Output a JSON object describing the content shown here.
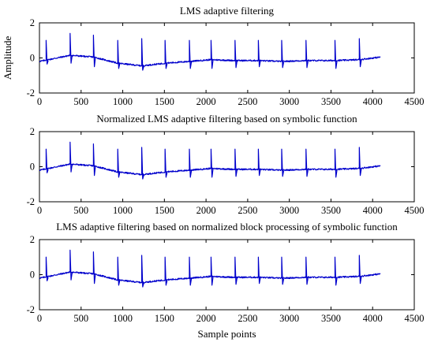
{
  "chart_data": [
    {
      "type": "line",
      "title": "LMS adaptive filtering",
      "xlabel": "",
      "ylabel": "Amplitude",
      "xlim": [
        0,
        4500
      ],
      "ylim": [
        -2,
        2
      ],
      "xticks": [
        0,
        500,
        1000,
        1500,
        2000,
        2500,
        3000,
        3500,
        4000,
        4500
      ],
      "yticks": [
        -2,
        0,
        2
      ],
      "grid": false,
      "series_color": "#0000cc",
      "signal_samples": 4096,
      "spike_positions": [
        80,
        370,
        650,
        940,
        1230,
        1510,
        1800,
        2060,
        2350,
        2630,
        2910,
        3200,
        3550,
        3840
      ],
      "spike_peaks": [
        1.0,
        1.4,
        1.3,
        1.0,
        1.1,
        1.0,
        1.0,
        1.0,
        1.0,
        1.0,
        1.0,
        1.0,
        1.0,
        1.1
      ],
      "spike_troughs": [
        -0.35,
        -0.3,
        -0.5,
        -0.6,
        -0.7,
        -0.6,
        -0.6,
        -0.6,
        -0.55,
        -0.5,
        -0.55,
        -0.55,
        -0.6,
        -0.5
      ],
      "baseline": [
        [
          0,
          -0.2
        ],
        [
          370,
          0.15
        ],
        [
          650,
          0.05
        ],
        [
          940,
          -0.3
        ],
        [
          1230,
          -0.45
        ],
        [
          1510,
          -0.3
        ],
        [
          1800,
          -0.2
        ],
        [
          2060,
          -0.1
        ],
        [
          2350,
          -0.15
        ],
        [
          2630,
          -0.15
        ],
        [
          2910,
          -0.2
        ],
        [
          3200,
          -0.15
        ],
        [
          3550,
          -0.15
        ],
        [
          3840,
          -0.1
        ],
        [
          4096,
          0.05
        ]
      ]
    },
    {
      "type": "line",
      "title": "Normalized LMS adaptive filtering based on symbolic function",
      "xlabel": "",
      "ylabel": "",
      "xlim": [
        0,
        4500
      ],
      "ylim": [
        -2,
        2
      ],
      "xticks": [
        0,
        500,
        1000,
        1500,
        2000,
        2500,
        3000,
        3500,
        4000,
        4500
      ],
      "yticks": [
        -2,
        0,
        2
      ],
      "grid": false,
      "series_color": "#0000cc",
      "signal_samples": 4096,
      "spike_positions": [
        80,
        370,
        650,
        940,
        1230,
        1510,
        1800,
        2060,
        2350,
        2630,
        2910,
        3200,
        3550,
        3840
      ],
      "spike_peaks": [
        1.0,
        1.4,
        1.3,
        1.0,
        1.1,
        1.0,
        1.0,
        1.0,
        1.0,
        1.0,
        1.0,
        1.0,
        1.0,
        1.1
      ],
      "spike_troughs": [
        -0.35,
        -0.3,
        -0.5,
        -0.6,
        -0.7,
        -0.6,
        -0.6,
        -0.6,
        -0.55,
        -0.5,
        -0.55,
        -0.55,
        -0.6,
        -0.5
      ],
      "baseline": [
        [
          0,
          -0.2
        ],
        [
          370,
          0.15
        ],
        [
          650,
          0.05
        ],
        [
          940,
          -0.3
        ],
        [
          1230,
          -0.45
        ],
        [
          1510,
          -0.3
        ],
        [
          1800,
          -0.2
        ],
        [
          2060,
          -0.1
        ],
        [
          2350,
          -0.15
        ],
        [
          2630,
          -0.15
        ],
        [
          2910,
          -0.2
        ],
        [
          3200,
          -0.15
        ],
        [
          3550,
          -0.15
        ],
        [
          3840,
          -0.1
        ],
        [
          4096,
          0.05
        ]
      ]
    },
    {
      "type": "line",
      "title": "LMS adaptive filtering based on normalized block processing of symbolic function",
      "xlabel": "Sample points",
      "ylabel": "",
      "xlim": [
        0,
        4500
      ],
      "ylim": [
        -2,
        2
      ],
      "xticks": [
        0,
        500,
        1000,
        1500,
        2000,
        2500,
        3000,
        3500,
        4000,
        4500
      ],
      "yticks": [
        -2,
        0,
        2
      ],
      "grid": false,
      "series_color": "#0000cc",
      "signal_samples": 4096,
      "spike_positions": [
        80,
        370,
        650,
        940,
        1230,
        1510,
        1800,
        2060,
        2350,
        2630,
        2910,
        3200,
        3550,
        3840
      ],
      "spike_peaks": [
        1.0,
        1.4,
        1.3,
        1.0,
        1.1,
        1.0,
        1.0,
        1.0,
        1.0,
        1.0,
        1.0,
        1.0,
        1.0,
        1.1
      ],
      "spike_troughs": [
        -0.35,
        -0.3,
        -0.5,
        -0.6,
        -0.7,
        -0.6,
        -0.6,
        -0.6,
        -0.55,
        -0.5,
        -0.55,
        -0.55,
        -0.6,
        -0.5
      ],
      "baseline": [
        [
          0,
          -0.2
        ],
        [
          370,
          0.15
        ],
        [
          650,
          0.05
        ],
        [
          940,
          -0.3
        ],
        [
          1230,
          -0.45
        ],
        [
          1510,
          -0.3
        ],
        [
          1800,
          -0.2
        ],
        [
          2060,
          -0.1
        ],
        [
          2350,
          -0.15
        ],
        [
          2630,
          -0.15
        ],
        [
          2910,
          -0.2
        ],
        [
          3200,
          -0.15
        ],
        [
          3550,
          -0.15
        ],
        [
          3840,
          -0.1
        ],
        [
          4096,
          0.05
        ]
      ]
    }
  ]
}
